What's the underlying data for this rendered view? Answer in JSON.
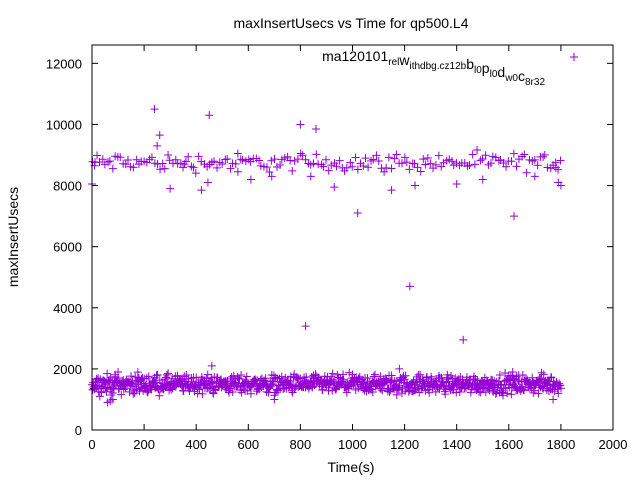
{
  "chart_data": {
    "type": "scatter",
    "title": "maxInsertUsecs vs Time for qp500.L4",
    "xlabel": "Time(s)",
    "ylabel": "maxInsertUsecs",
    "xlim": [
      0,
      2000
    ],
    "ylim": [
      0,
      12600
    ],
    "x_ticks": [
      0,
      200,
      400,
      600,
      800,
      1000,
      1200,
      1400,
      1600,
      1800,
      2000
    ],
    "y_ticks": [
      0,
      2000,
      4000,
      6000,
      8000,
      10000,
      12000
    ],
    "legend": {
      "placement": "top-right",
      "label_parts": [
        {
          "text": "ma120101",
          "sub": false
        },
        {
          "text": "rel",
          "sub": true
        },
        {
          "text": "w",
          "sub": false
        },
        {
          "text": "ithdbg.cz12b",
          "sub": true
        },
        {
          "text": "b",
          "sub": false
        },
        {
          "text": "l0",
          "sub": true
        },
        {
          "text": "p",
          "sub": false
        },
        {
          "text": "l0",
          "sub": true
        },
        {
          "text": "d",
          "sub": false
        },
        {
          "text": "w0",
          "sub": true
        },
        {
          "text": "c",
          "sub": false
        },
        {
          "text": "8r32",
          "sub": true
        }
      ]
    },
    "series": [
      {
        "name": "ma120101 rel withdbg.cz12b bl0 pl0 dw0 c8r32",
        "color": "#9400d3",
        "marker": "+",
        "bands": [
          {
            "x_start": 0,
            "x_end": 1800,
            "step": 10,
            "y_center": 8750,
            "y_spread": 300
          },
          {
            "x_start": 0,
            "x_end": 1800,
            "step": 2,
            "y_center": 1500,
            "y_spread": 300
          }
        ],
        "points": [
          [
            0,
            8050
          ],
          [
            10,
            8650
          ],
          [
            240,
            10500
          ],
          [
            250,
            9300
          ],
          [
            260,
            9650
          ],
          [
            450,
            10300
          ],
          [
            445,
            8100
          ],
          [
            610,
            8200
          ],
          [
            800,
            10000
          ],
          [
            820,
            3400
          ],
          [
            860,
            9850
          ],
          [
            1020,
            7100
          ],
          [
            1220,
            4700
          ],
          [
            1425,
            2950
          ],
          [
            1620,
            7000
          ],
          [
            1790,
            8100
          ],
          [
            1800,
            8000
          ],
          [
            1780,
            8750
          ],
          [
            840,
            8300
          ],
          [
            300,
            7900
          ],
          [
            420,
            7850
          ],
          [
            1150,
            7850
          ],
          [
            690,
            8300
          ],
          [
            930,
            7950
          ],
          [
            1400,
            8050
          ],
          [
            1700,
            8300
          ],
          [
            560,
            8450
          ],
          [
            1500,
            8200
          ],
          [
            1240,
            8000
          ],
          [
            355,
            8700
          ],
          [
            70,
            950
          ],
          [
            80,
            1000
          ],
          [
            60,
            900
          ],
          [
            700,
            1000
          ],
          [
            1170,
            1150
          ],
          [
            1770,
            1000
          ],
          [
            100,
            1900
          ],
          [
            460,
            2100
          ],
          [
            1180,
            2000
          ],
          [
            1615,
            1900
          ]
        ]
      }
    ]
  }
}
